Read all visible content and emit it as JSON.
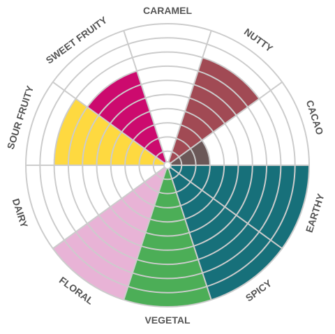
{
  "chart_data": {
    "type": "polar-area",
    "title": "",
    "categories": [
      "CARAMEL",
      "NUTTY",
      "CACAO",
      "EARTHY",
      "SPICY",
      "VEGETAL",
      "FLORAL",
      "DAIRY",
      "SOUR FRUITY",
      "SWEET FRUITY"
    ],
    "values": [
      0,
      8,
      3,
      10,
      10,
      10,
      10,
      0,
      8,
      7
    ],
    "colors": [
      "#999999",
      "#a14a54",
      "#6b5858",
      "#17707a",
      "#17707a",
      "#4cae57",
      "#e8b3d6",
      "#999999",
      "#fed940",
      "#cc0a6e"
    ],
    "rmax": 10,
    "rings": 10,
    "grid": true,
    "gridColor": "#cccccc",
    "labelColor": "#555555"
  }
}
